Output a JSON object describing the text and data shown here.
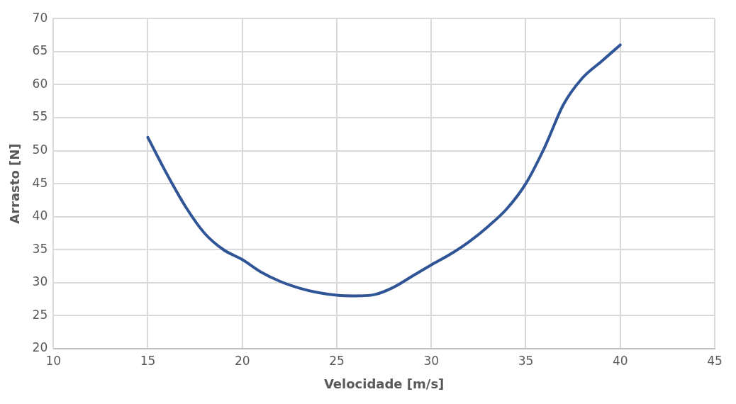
{
  "chart_data": {
    "type": "line",
    "xlabel": "Velocidade [m/s]",
    "ylabel": "Arrasto [N]",
    "x": [
      15,
      16,
      17,
      18,
      19,
      20,
      21,
      22,
      23,
      24,
      25,
      26,
      27,
      28,
      29,
      30,
      31,
      32,
      33,
      34,
      35,
      36,
      37,
      38,
      39,
      40
    ],
    "series": [
      {
        "color": "#2f5597",
        "values": [
          52,
          46.5,
          41.5,
          37.5,
          35,
          33.5,
          31.6,
          30.2,
          29.2,
          28.5,
          28.1,
          28,
          28.2,
          29.3,
          31,
          32.7,
          34.3,
          36.2,
          38.5,
          41.2,
          45,
          50.5,
          57,
          61,
          63.5,
          66
        ]
      }
    ],
    "xlim": [
      10,
      45
    ],
    "xticks": [
      10,
      15,
      20,
      25,
      30,
      35,
      40,
      45
    ],
    "ylim": [
      20,
      70
    ],
    "yticks": [
      20,
      25,
      30,
      35,
      40,
      45,
      50,
      55,
      60,
      65,
      70
    ],
    "grid": true,
    "legend": false,
    "marker": "none",
    "line_style": "solid"
  }
}
